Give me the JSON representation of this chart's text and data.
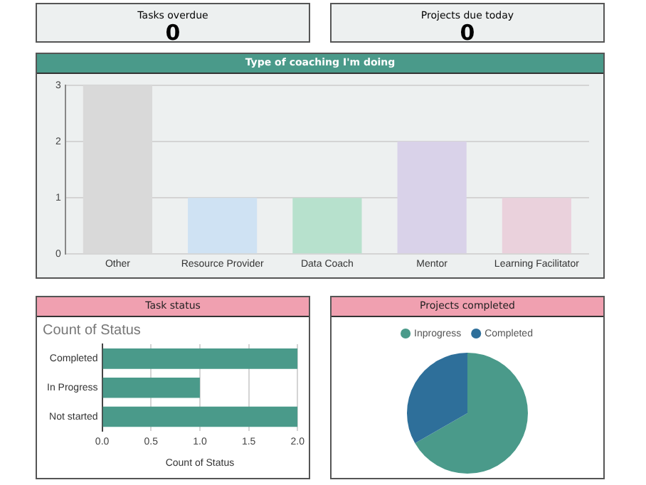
{
  "chart_data": [
    {
      "type": "other",
      "title": "Tasks overdue",
      "annotations": [
        "0"
      ]
    },
    {
      "type": "other",
      "title": "Projects due today",
      "annotations": [
        "0"
      ]
    },
    {
      "type": "bar",
      "title": "Type of coaching I'm doing",
      "categories": [
        "Other",
        "Resource Provider",
        "Data Coach",
        "Mentor",
        "Learning Facilitator"
      ],
      "values": [
        3,
        1,
        1,
        2,
        1
      ],
      "colors": [
        "#d9d9d9",
        "#cfe2f3",
        "#b7e1cd",
        "#d9d2e9",
        "#ead1dc"
      ],
      "ylim": [
        0,
        3
      ],
      "yticks": [
        0,
        1,
        2,
        3
      ],
      "grid": "y",
      "legend": false
    },
    {
      "type": "bar",
      "orientation": "horizontal",
      "title": "Task status",
      "subtitle": "Count of Status",
      "xlabel": "Count of Status",
      "categories": [
        "Completed",
        "In Progress",
        "Not started"
      ],
      "values": [
        2,
        1,
        2
      ],
      "color": "#4a9a8a",
      "xlim": [
        0,
        2
      ],
      "xticks": [
        {
          "value": 0,
          "label": "0.0"
        },
        {
          "value": 0.5,
          "label": "0.5"
        },
        {
          "value": 1,
          "label": "1.0"
        },
        {
          "value": 1.5,
          "label": "1.5"
        },
        {
          "value": 2,
          "label": "2.0"
        }
      ],
      "grid": "x",
      "legend": false
    },
    {
      "type": "pie",
      "title": "Projects completed",
      "categories": [
        "Inprogress",
        "Completed"
      ],
      "values": [
        66.7,
        33.3
      ],
      "colors": [
        "#4a9a8a",
        "#2e6f9a"
      ],
      "legend": "top"
    }
  ]
}
